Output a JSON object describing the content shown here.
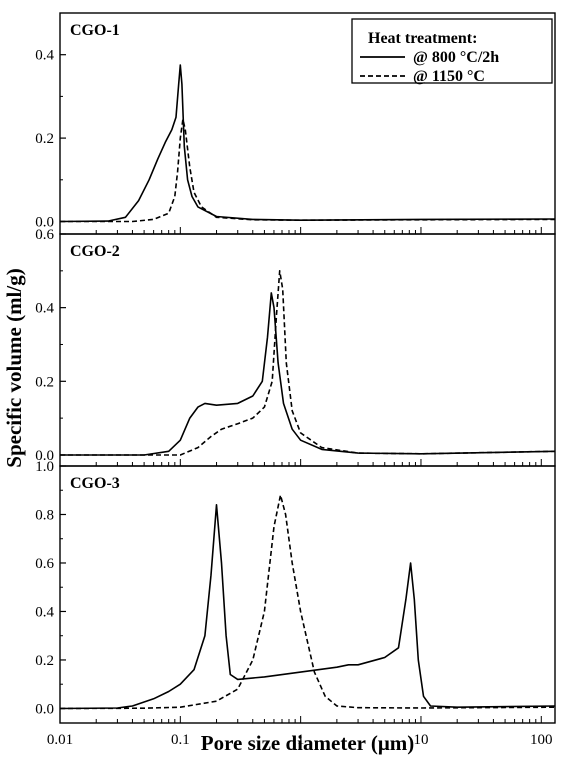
{
  "chart_data": {
    "type": "line",
    "xlabel": "Pore size diameter (μm)",
    "ylabel": "Specific volume (ml/g)",
    "xscale": "log",
    "xlim": [
      0.01,
      130
    ],
    "x_ticks": [
      {
        "value": 0.01,
        "label": "0.01"
      },
      {
        "value": 0.1,
        "label": "0.1"
      },
      {
        "value": 1,
        "label": "1"
      },
      {
        "value": 10,
        "label": "10"
      },
      {
        "value": 100,
        "label": "100"
      }
    ],
    "legend": {
      "title": "Heat treatment:",
      "placement": "top-right",
      "entries": [
        {
          "label": "@ 800 °C/2h",
          "style": "solid"
        },
        {
          "label": "@ 1150 °C",
          "style": "dashed"
        }
      ]
    },
    "panels": [
      {
        "label": "CGO-1",
        "ylim": [
          -0.03,
          0.5
        ],
        "y_ticks": [
          {
            "value": 0.0,
            "label": "0.0"
          },
          {
            "value": 0.2,
            "label": "0.2"
          },
          {
            "value": 0.4,
            "label": "0.4"
          }
        ],
        "series": [
          {
            "style": "solid",
            "points": [
              [
                0.01,
                0
              ],
              [
                0.025,
                0.001
              ],
              [
                0.035,
                0.01
              ],
              [
                0.045,
                0.05
              ],
              [
                0.055,
                0.1
              ],
              [
                0.065,
                0.15
              ],
              [
                0.075,
                0.19
              ],
              [
                0.085,
                0.22
              ],
              [
                0.092,
                0.25
              ],
              [
                0.097,
                0.33
              ],
              [
                0.1,
                0.375
              ],
              [
                0.103,
                0.33
              ],
              [
                0.108,
                0.18
              ],
              [
                0.115,
                0.1
              ],
              [
                0.125,
                0.06
              ],
              [
                0.14,
                0.035
              ],
              [
                0.2,
                0.012
              ],
              [
                0.4,
                0.005
              ],
              [
                1,
                0.003
              ],
              [
                10,
                0.005
              ],
              [
                130,
                0.006
              ]
            ]
          },
          {
            "style": "dashed",
            "points": [
              [
                0.01,
                0
              ],
              [
                0.04,
                0
              ],
              [
                0.06,
                0.005
              ],
              [
                0.08,
                0.02
              ],
              [
                0.09,
                0.06
              ],
              [
                0.095,
                0.12
              ],
              [
                0.1,
                0.2
              ],
              [
                0.105,
                0.245
              ],
              [
                0.11,
                0.22
              ],
              [
                0.12,
                0.13
              ],
              [
                0.13,
                0.07
              ],
              [
                0.15,
                0.035
              ],
              [
                0.2,
                0.01
              ],
              [
                0.4,
                0.004
              ],
              [
                1,
                0.003
              ],
              [
                10,
                0.004
              ],
              [
                130,
                0.005
              ]
            ]
          }
        ]
      },
      {
        "label": "CGO-2",
        "ylim": [
          -0.03,
          0.6
        ],
        "y_ticks": [
          {
            "value": 0.0,
            "label": "0.0"
          },
          {
            "value": 0.2,
            "label": "0.2"
          },
          {
            "value": 0.4,
            "label": "0.4"
          },
          {
            "value": 0.6,
            "label": "0.6"
          }
        ],
        "series": [
          {
            "style": "solid",
            "points": [
              [
                0.01,
                0
              ],
              [
                0.05,
                0
              ],
              [
                0.08,
                0.01
              ],
              [
                0.1,
                0.04
              ],
              [
                0.12,
                0.1
              ],
              [
                0.14,
                0.13
              ],
              [
                0.16,
                0.14
              ],
              [
                0.2,
                0.135
              ],
              [
                0.3,
                0.14
              ],
              [
                0.4,
                0.16
              ],
              [
                0.48,
                0.2
              ],
              [
                0.53,
                0.32
              ],
              [
                0.57,
                0.44
              ],
              [
                0.6,
                0.4
              ],
              [
                0.65,
                0.25
              ],
              [
                0.72,
                0.14
              ],
              [
                0.85,
                0.07
              ],
              [
                1,
                0.04
              ],
              [
                1.5,
                0.015
              ],
              [
                3,
                0.005
              ],
              [
                10,
                0.003
              ],
              [
                130,
                0.01
              ]
            ]
          },
          {
            "style": "dashed",
            "points": [
              [
                0.01,
                0
              ],
              [
                0.1,
                0
              ],
              [
                0.14,
                0.02
              ],
              [
                0.18,
                0.05
              ],
              [
                0.22,
                0.07
              ],
              [
                0.3,
                0.085
              ],
              [
                0.4,
                0.1
              ],
              [
                0.5,
                0.13
              ],
              [
                0.58,
                0.2
              ],
              [
                0.63,
                0.38
              ],
              [
                0.67,
                0.5
              ],
              [
                0.71,
                0.45
              ],
              [
                0.76,
                0.25
              ],
              [
                0.85,
                0.12
              ],
              [
                1,
                0.06
              ],
              [
                1.5,
                0.02
              ],
              [
                3,
                0.005
              ],
              [
                10,
                0.003
              ],
              [
                130,
                0.01
              ]
            ]
          }
        ]
      },
      {
        "label": "CGO-3",
        "ylim": [
          -0.06,
          1.0
        ],
        "y_ticks": [
          {
            "value": 0.0,
            "label": "0.0"
          },
          {
            "value": 0.2,
            "label": "0.2"
          },
          {
            "value": 0.4,
            "label": "0.4"
          },
          {
            "value": 0.6,
            "label": "0.6"
          },
          {
            "value": 0.8,
            "label": "0.8"
          },
          {
            "value": 1.0,
            "label": "1.0"
          }
        ],
        "series": [
          {
            "style": "solid",
            "points": [
              [
                0.01,
                0
              ],
              [
                0.03,
                0.002
              ],
              [
                0.04,
                0.01
              ],
              [
                0.06,
                0.04
              ],
              [
                0.08,
                0.07
              ],
              [
                0.1,
                0.1
              ],
              [
                0.13,
                0.16
              ],
              [
                0.16,
                0.3
              ],
              [
                0.18,
                0.55
              ],
              [
                0.2,
                0.84
              ],
              [
                0.22,
                0.6
              ],
              [
                0.24,
                0.3
              ],
              [
                0.26,
                0.14
              ],
              [
                0.3,
                0.12
              ],
              [
                0.5,
                0.13
              ],
              [
                1,
                0.15
              ],
              [
                2,
                0.17
              ],
              [
                2.5,
                0.18
              ],
              [
                3,
                0.18
              ],
              [
                5,
                0.21
              ],
              [
                6.5,
                0.25
              ],
              [
                7.5,
                0.45
              ],
              [
                8.2,
                0.6
              ],
              [
                8.8,
                0.45
              ],
              [
                9.5,
                0.2
              ],
              [
                10.5,
                0.05
              ],
              [
                12,
                0.01
              ],
              [
                20,
                0.005
              ],
              [
                130,
                0.01
              ]
            ]
          },
          {
            "style": "dashed",
            "points": [
              [
                0.01,
                0
              ],
              [
                0.05,
                0.001
              ],
              [
                0.1,
                0.005
              ],
              [
                0.2,
                0.03
              ],
              [
                0.3,
                0.08
              ],
              [
                0.4,
                0.2
              ],
              [
                0.5,
                0.4
              ],
              [
                0.6,
                0.75
              ],
              [
                0.68,
                0.88
              ],
              [
                0.75,
                0.8
              ],
              [
                0.85,
                0.6
              ],
              [
                1,
                0.4
              ],
              [
                1.3,
                0.15
              ],
              [
                1.6,
                0.05
              ],
              [
                2,
                0.01
              ],
              [
                3,
                0.003
              ],
              [
                10,
                0.002
              ],
              [
                130,
                0.005
              ]
            ]
          }
        ]
      }
    ]
  }
}
